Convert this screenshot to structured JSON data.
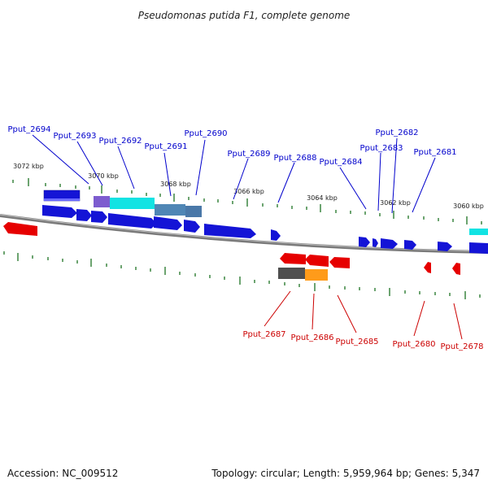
{
  "title": "Pseudomonas putida F1, complete genome",
  "footer": {
    "accession": "Accession: NC_009512",
    "summary": "Topology: circular; Length: 5,959,964 bp; Genes: 5,347"
  },
  "colors": {
    "forward_label": "#0000cc",
    "reverse_label": "#cc0000",
    "backbone": "#7a7a7a",
    "tick": "#2e7d32"
  },
  "scale_labels": [
    "3072 kbp",
    "3070 kbp",
    "3068 kbp",
    "3066 kbp",
    "3064 kbp",
    "3062 kbp",
    "3060 kbp"
  ],
  "forward_genes": [
    "Pput_2694",
    "Pput_2693",
    "Pput_2692",
    "Pput_2691",
    "Pput_2690",
    "Pput_2689",
    "Pput_2688",
    "Pput_2684",
    "Pput_2683",
    "Pput_2682",
    "Pput_2681"
  ],
  "reverse_genes": [
    "Pput_2687",
    "Pput_2686",
    "Pput_2685",
    "Pput_2680",
    "Pput_2678"
  ]
}
